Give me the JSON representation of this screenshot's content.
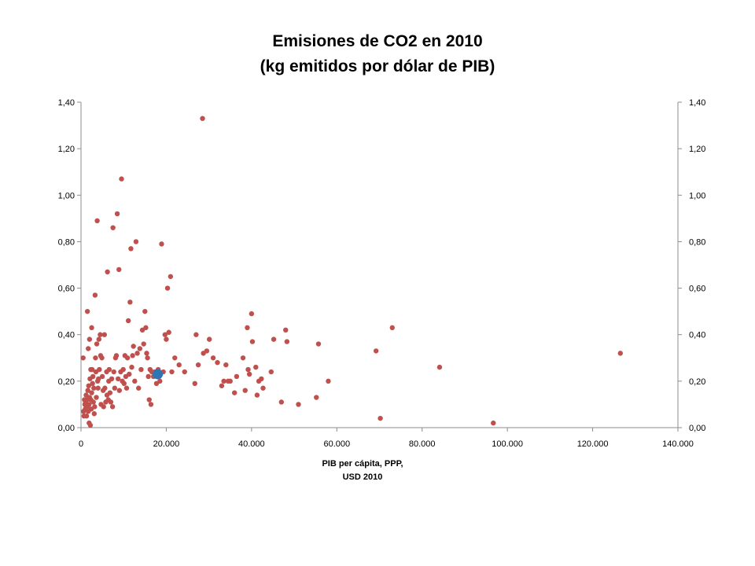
{
  "chart_data": {
    "type": "scatter",
    "title": [
      "Emisiones de CO2  en 2010",
      "(kg emitidos por dólar de PIB)"
    ],
    "xlabel": [
      "PIB per cápita, PPP,",
      "USD 2010"
    ],
    "ylabel": "",
    "xlim": [
      0,
      140000
    ],
    "ylim": [
      0,
      1.4
    ],
    "x_ticks": [
      "0",
      "20.000",
      "40.000",
      "60.000",
      "80.000",
      "100.000",
      "120.000",
      "140.000"
    ],
    "y_ticks": [
      "0,00",
      "0,20",
      "0,40",
      "0,60",
      "0,80",
      "1,00",
      "1,20",
      "1,40"
    ],
    "y_ticks_right": [
      "0,00",
      "0,20",
      "0,40",
      "0,60",
      "0,80",
      "1,00",
      "1,20",
      "1,40"
    ],
    "grid": false,
    "legend": "none",
    "series": [
      {
        "color": "#c0504d",
        "points": [
          [
            500,
            0.3
          ],
          [
            600,
            0.07
          ],
          [
            700,
            0.05
          ],
          [
            800,
            0.12
          ],
          [
            900,
            0.1
          ],
          [
            1000,
            0.08
          ],
          [
            1100,
            0.11
          ],
          [
            1200,
            0.14
          ],
          [
            1300,
            0.05
          ],
          [
            1400,
            0.12
          ],
          [
            1500,
            0.5
          ],
          [
            1500,
            0.09
          ],
          [
            1600,
            0.16
          ],
          [
            1700,
            0.34
          ],
          [
            1700,
            0.07
          ],
          [
            1800,
            0.18
          ],
          [
            1900,
            0.02
          ],
          [
            1900,
            0.1
          ],
          [
            2000,
            0.38
          ],
          [
            2000,
            0.13
          ],
          [
            2100,
            0.21
          ],
          [
            2200,
            0.01
          ],
          [
            2300,
            0.25
          ],
          [
            2300,
            0.12
          ],
          [
            2400,
            0.08
          ],
          [
            2500,
            0.43
          ],
          [
            2500,
            0.15
          ],
          [
            2600,
            0.25
          ],
          [
            2700,
            0.19
          ],
          [
            2800,
            0.22
          ],
          [
            2900,
            0.11
          ],
          [
            3000,
            0.17
          ],
          [
            3100,
            0.06
          ],
          [
            3200,
            0.09
          ],
          [
            3300,
            0.57
          ],
          [
            3400,
            0.3
          ],
          [
            3500,
            0.24
          ],
          [
            3600,
            0.13
          ],
          [
            3700,
            0.36
          ],
          [
            3800,
            0.89
          ],
          [
            3900,
            0.2
          ],
          [
            4000,
            0.17
          ],
          [
            4100,
            0.21
          ],
          [
            4200,
            0.38
          ],
          [
            4300,
            0.25
          ],
          [
            4500,
            0.4
          ],
          [
            4600,
            0.31
          ],
          [
            4700,
            0.1
          ],
          [
            4900,
            0.3
          ],
          [
            5000,
            0.22
          ],
          [
            5200,
            0.16
          ],
          [
            5300,
            0.09
          ],
          [
            5500,
            0.4
          ],
          [
            5600,
            0.17
          ],
          [
            5800,
            0.11
          ],
          [
            6000,
            0.24
          ],
          [
            6100,
            0.14
          ],
          [
            6200,
            0.67
          ],
          [
            6400,
            0.12
          ],
          [
            6500,
            0.2
          ],
          [
            6600,
            0.25
          ],
          [
            6800,
            0.15
          ],
          [
            7000,
            0.11
          ],
          [
            7200,
            0.21
          ],
          [
            7400,
            0.09
          ],
          [
            7500,
            0.86
          ],
          [
            7700,
            0.24
          ],
          [
            7900,
            0.17
          ],
          [
            8100,
            0.3
          ],
          [
            8300,
            0.31
          ],
          [
            8500,
            0.92
          ],
          [
            8700,
            0.21
          ],
          [
            8900,
            0.68
          ],
          [
            9000,
            0.16
          ],
          [
            9300,
            0.24
          ],
          [
            9500,
            1.07
          ],
          [
            9700,
            0.2
          ],
          [
            9900,
            0.25
          ],
          [
            10100,
            0.19
          ],
          [
            10300,
            0.31
          ],
          [
            10500,
            0.22
          ],
          [
            10700,
            0.17
          ],
          [
            10900,
            0.3
          ],
          [
            11100,
            0.46
          ],
          [
            11300,
            0.23
          ],
          [
            11500,
            0.54
          ],
          [
            11700,
            0.77
          ],
          [
            11900,
            0.26
          ],
          [
            12100,
            0.31
          ],
          [
            12300,
            0.35
          ],
          [
            12600,
            0.2
          ],
          [
            12900,
            0.8
          ],
          [
            13200,
            0.32
          ],
          [
            13500,
            0.17
          ],
          [
            13800,
            0.34
          ],
          [
            14100,
            0.25
          ],
          [
            14400,
            0.42
          ],
          [
            14700,
            0.36
          ],
          [
            15000,
            0.5
          ],
          [
            15200,
            0.43
          ],
          [
            15400,
            0.32
          ],
          [
            15600,
            0.3
          ],
          [
            15800,
            0.22
          ],
          [
            16000,
            0.12
          ],
          [
            16200,
            0.25
          ],
          [
            16400,
            0.1
          ],
          [
            16600,
            0.24
          ],
          [
            17000,
            0.22
          ],
          [
            17300,
            0.24
          ],
          [
            17700,
            0.19
          ],
          [
            18100,
            0.25
          ],
          [
            18500,
            0.2
          ],
          [
            18900,
            0.79
          ],
          [
            19300,
            0.24
          ],
          [
            19700,
            0.4
          ],
          [
            20000,
            0.38
          ],
          [
            20300,
            0.6
          ],
          [
            20600,
            0.41
          ],
          [
            21000,
            0.65
          ],
          [
            21300,
            0.24
          ],
          [
            22000,
            0.3
          ],
          [
            23000,
            0.27
          ],
          [
            24300,
            0.24
          ],
          [
            26700,
            0.19
          ],
          [
            27000,
            0.4
          ],
          [
            27500,
            0.27
          ],
          [
            28700,
            0.32
          ],
          [
            29500,
            0.33
          ],
          [
            30100,
            0.38
          ],
          [
            31000,
            0.3
          ],
          [
            32000,
            0.28
          ],
          [
            33000,
            0.18
          ],
          [
            34000,
            0.27
          ],
          [
            35000,
            0.2
          ],
          [
            36000,
            0.15
          ],
          [
            36500,
            0.22
          ],
          [
            38000,
            0.3
          ],
          [
            38500,
            0.16
          ],
          [
            39000,
            0.43
          ],
          [
            39200,
            0.25
          ],
          [
            39500,
            0.23
          ],
          [
            40000,
            0.49
          ],
          [
            40200,
            0.37
          ],
          [
            41000,
            0.26
          ],
          [
            41300,
            0.14
          ],
          [
            41700,
            0.2
          ],
          [
            42300,
            0.21
          ],
          [
            42700,
            0.17
          ],
          [
            44600,
            0.24
          ],
          [
            45200,
            0.38
          ],
          [
            47000,
            0.11
          ],
          [
            48000,
            0.42
          ],
          [
            48300,
            0.37
          ],
          [
            51000,
            0.1
          ],
          [
            55200,
            0.13
          ],
          [
            55700,
            0.36
          ],
          [
            58000,
            0.2
          ],
          [
            69200,
            0.33
          ],
          [
            70200,
            0.04
          ],
          [
            73000,
            0.43
          ],
          [
            84100,
            0.26
          ],
          [
            96700,
            0.02
          ],
          [
            126500,
            0.32
          ],
          [
            28500,
            1.33
          ],
          [
            34500,
            0.2
          ],
          [
            33500,
            0.2
          ]
        ]
      },
      {
        "name": "",
        "color": "#2e75b6",
        "points": [
          [
            18000,
            0.23
          ]
        ]
      }
    ]
  }
}
